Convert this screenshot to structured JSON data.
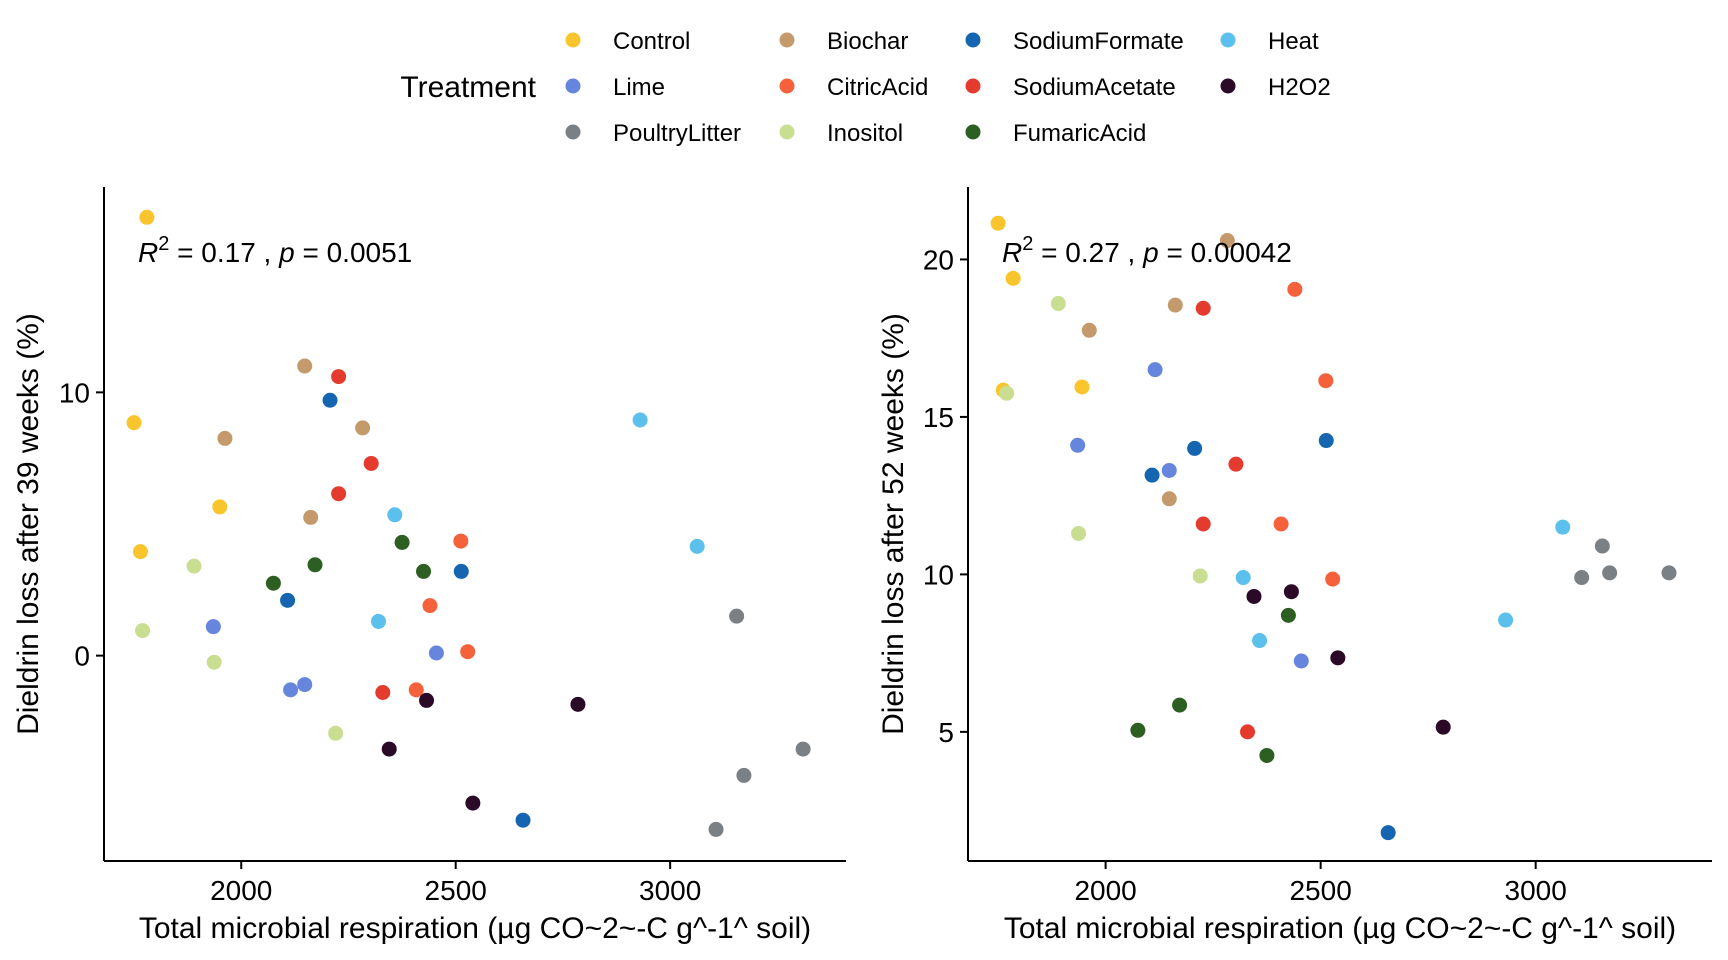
{
  "legend": {
    "title": "Treatment",
    "entries": [
      {
        "name": "Control",
        "color": "#F9C52C"
      },
      {
        "name": "Lime",
        "color": "#6685DC"
      },
      {
        "name": "PoultryLitter",
        "color": "#7B8085"
      },
      {
        "name": "Biochar",
        "color": "#C49A6C"
      },
      {
        "name": "CitricAcid",
        "color": "#F4613B"
      },
      {
        "name": "Inositol",
        "color": "#C9DE91"
      },
      {
        "name": "SodiumFormate",
        "color": "#1565B0"
      },
      {
        "name": "SodiumAcetate",
        "color": "#E43B2E"
      },
      {
        "name": "FumaricAcid",
        "color": "#2E5F22"
      },
      {
        "name": "Heat",
        "color": "#5BC0EB"
      },
      {
        "name": "H2O2",
        "color": "#2A0A26"
      }
    ]
  },
  "chart_data": [
    {
      "type": "scatter",
      "xlabel": "Total microbial respiration (µg CO~2~-C g^-1^ soil)",
      "ylabel": "Dieldrin loss after 39 weeks (%)",
      "xlim": [
        1680,
        3410
      ],
      "ylim": [
        -7.8,
        17.8
      ],
      "x_ticks": [
        2000,
        2500,
        3000
      ],
      "y_ticks": [
        0,
        10
      ],
      "annotation": {
        "r_label": "R",
        "r_exp": "2",
        "r_value": " = 0.17 , ",
        "p_label": "p",
        "p_value": " = 0.0051"
      },
      "points": [
        {
          "series": "Control",
          "x": 1780,
          "y": 16.65
        },
        {
          "series": "Control",
          "x": 1750,
          "y": 8.85
        },
        {
          "series": "Control",
          "x": 1950,
          "y": 5.65
        },
        {
          "series": "Control",
          "x": 1765,
          "y": 3.95
        },
        {
          "series": "Lime",
          "x": 1935,
          "y": 1.1
        },
        {
          "series": "Lime",
          "x": 2115,
          "y": -1.3
        },
        {
          "series": "Lime",
          "x": 2148,
          "y": -1.1
        },
        {
          "series": "Lime",
          "x": 2455,
          "y": 0.1
        },
        {
          "series": "PoultryLitter",
          "x": 3155,
          "y": 1.5
        },
        {
          "series": "PoultryLitter",
          "x": 3310,
          "y": -3.55
        },
        {
          "series": "PoultryLitter",
          "x": 3172,
          "y": -4.55
        },
        {
          "series": "PoultryLitter",
          "x": 3107,
          "y": -6.6
        },
        {
          "series": "Biochar",
          "x": 2148,
          "y": 11.0
        },
        {
          "series": "Biochar",
          "x": 1962,
          "y": 8.25
        },
        {
          "series": "Biochar",
          "x": 2283,
          "y": 8.65
        },
        {
          "series": "Biochar",
          "x": 2162,
          "y": 5.25
        },
        {
          "series": "CitricAcid",
          "x": 2512,
          "y": 4.35
        },
        {
          "series": "CitricAcid",
          "x": 2440,
          "y": 1.9
        },
        {
          "series": "CitricAcid",
          "x": 2528,
          "y": 0.15
        },
        {
          "series": "CitricAcid",
          "x": 2408,
          "y": -1.3
        },
        {
          "series": "Inositol",
          "x": 1890,
          "y": 3.4
        },
        {
          "series": "Inositol",
          "x": 1770,
          "y": 0.95
        },
        {
          "series": "Inositol",
          "x": 1937,
          "y": -0.25
        },
        {
          "series": "Inositol",
          "x": 2220,
          "y": -2.95
        },
        {
          "series": "SodiumFormate",
          "x": 2207,
          "y": 9.7
        },
        {
          "series": "SodiumFormate",
          "x": 2108,
          "y": 2.1
        },
        {
          "series": "SodiumFormate",
          "x": 2513,
          "y": 3.2
        },
        {
          "series": "SodiumFormate",
          "x": 2657,
          "y": -6.25
        },
        {
          "series": "SodiumAcetate",
          "x": 2227,
          "y": 10.6
        },
        {
          "series": "SodiumAcetate",
          "x": 2303,
          "y": 7.3
        },
        {
          "series": "SodiumAcetate",
          "x": 2227,
          "y": 6.15
        },
        {
          "series": "SodiumAcetate",
          "x": 2330,
          "y": -1.4
        },
        {
          "series": "FumaricAcid",
          "x": 2075,
          "y": 2.75
        },
        {
          "series": "FumaricAcid",
          "x": 2172,
          "y": 3.45
        },
        {
          "series": "FumaricAcid",
          "x": 2375,
          "y": 4.3
        },
        {
          "series": "FumaricAcid",
          "x": 2425,
          "y": 3.2
        },
        {
          "series": "Heat",
          "x": 2930,
          "y": 8.95
        },
        {
          "series": "Heat",
          "x": 3063,
          "y": 4.15
        },
        {
          "series": "Heat",
          "x": 2358,
          "y": 5.35
        },
        {
          "series": "Heat",
          "x": 2320,
          "y": 1.3
        },
        {
          "series": "H2O2",
          "x": 2432,
          "y": -1.7
        },
        {
          "series": "H2O2",
          "x": 2345,
          "y": -3.55
        },
        {
          "series": "H2O2",
          "x": 2540,
          "y": -5.6
        },
        {
          "series": "H2O2",
          "x": 2785,
          "y": -1.85
        }
      ]
    },
    {
      "type": "scatter",
      "xlabel": "Total microbial respiration (µg CO~2~-C g^-1^ soil)",
      "ylabel": "Dieldrin loss after 52 weeks (%)",
      "xlim": [
        1680,
        3410
      ],
      "ylim": [
        0.9,
        22.3
      ],
      "x_ticks": [
        2000,
        2500,
        3000
      ],
      "y_ticks": [
        5,
        10,
        15,
        20
      ],
      "annotation": {
        "r_label": "R",
        "r_exp": "2",
        "r_value": " = 0.27 , ",
        "p_label": "p",
        "p_value": " = 0.00042"
      },
      "points": [
        {
          "series": "Control",
          "x": 1750,
          "y": 21.15
        },
        {
          "series": "Control",
          "x": 1785,
          "y": 19.4
        },
        {
          "series": "Control",
          "x": 1762,
          "y": 15.85
        },
        {
          "series": "Control",
          "x": 1945,
          "y": 15.95
        },
        {
          "series": "Lime",
          "x": 2115,
          "y": 16.5
        },
        {
          "series": "Lime",
          "x": 1935,
          "y": 14.1
        },
        {
          "series": "Lime",
          "x": 2148,
          "y": 13.3
        },
        {
          "series": "Lime",
          "x": 2455,
          "y": 7.25
        },
        {
          "series": "PoultryLitter",
          "x": 3155,
          "y": 10.9
        },
        {
          "series": "PoultryLitter",
          "x": 3107,
          "y": 9.9
        },
        {
          "series": "PoultryLitter",
          "x": 3172,
          "y": 10.05
        },
        {
          "series": "PoultryLitter",
          "x": 3310,
          "y": 10.05
        },
        {
          "series": "Biochar",
          "x": 2283,
          "y": 20.6
        },
        {
          "series": "Biochar",
          "x": 2162,
          "y": 18.55
        },
        {
          "series": "Biochar",
          "x": 1962,
          "y": 17.75
        },
        {
          "series": "Biochar",
          "x": 2148,
          "y": 12.4
        },
        {
          "series": "CitricAcid",
          "x": 2440,
          "y": 19.05
        },
        {
          "series": "CitricAcid",
          "x": 2512,
          "y": 16.15
        },
        {
          "series": "CitricAcid",
          "x": 2408,
          "y": 11.6
        },
        {
          "series": "CitricAcid",
          "x": 2528,
          "y": 9.85
        },
        {
          "series": "Inositol",
          "x": 1890,
          "y": 18.6
        },
        {
          "series": "Inositol",
          "x": 1770,
          "y": 15.75
        },
        {
          "series": "Inositol",
          "x": 1937,
          "y": 11.3
        },
        {
          "series": "Inositol",
          "x": 2220,
          "y": 9.95
        },
        {
          "series": "SodiumFormate",
          "x": 2207,
          "y": 14.0
        },
        {
          "series": "SodiumFormate",
          "x": 2108,
          "y": 13.15
        },
        {
          "series": "SodiumFormate",
          "x": 2513,
          "y": 14.25
        },
        {
          "series": "SodiumFormate",
          "x": 2657,
          "y": 1.8
        },
        {
          "series": "SodiumAcetate",
          "x": 2227,
          "y": 18.45
        },
        {
          "series": "SodiumAcetate",
          "x": 2303,
          "y": 13.5
        },
        {
          "series": "SodiumAcetate",
          "x": 2227,
          "y": 11.6
        },
        {
          "series": "SodiumAcetate",
          "x": 2330,
          "y": 5.0
        },
        {
          "series": "FumaricAcid",
          "x": 2425,
          "y": 8.7
        },
        {
          "series": "FumaricAcid",
          "x": 2172,
          "y": 5.85
        },
        {
          "series": "FumaricAcid",
          "x": 2075,
          "y": 5.05
        },
        {
          "series": "FumaricAcid",
          "x": 2375,
          "y": 4.25
        },
        {
          "series": "Heat",
          "x": 3063,
          "y": 11.5
        },
        {
          "series": "Heat",
          "x": 2320,
          "y": 9.9
        },
        {
          "series": "Heat",
          "x": 2930,
          "y": 8.55
        },
        {
          "series": "Heat",
          "x": 2358,
          "y": 7.9
        },
        {
          "series": "H2O2",
          "x": 2345,
          "y": 9.3
        },
        {
          "series": "H2O2",
          "x": 2432,
          "y": 9.45
        },
        {
          "series": "H2O2",
          "x": 2540,
          "y": 7.35
        },
        {
          "series": "H2O2",
          "x": 2785,
          "y": 5.15
        }
      ]
    }
  ]
}
